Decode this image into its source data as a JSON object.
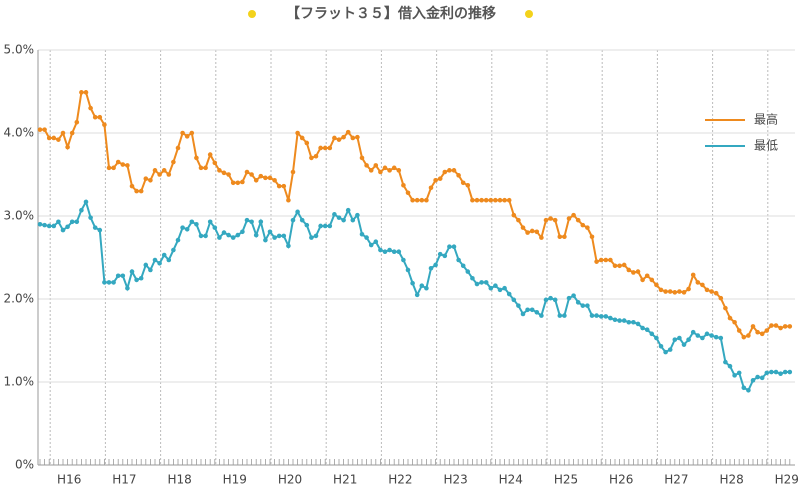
{
  "chart_data": {
    "type": "line",
    "title": "【フラット３５】借入金利の推移",
    "categories": [
      null,
      null,
      null,
      null,
      null,
      null,
      null,
      "H16",
      null,
      null,
      null,
      null,
      null,
      null,
      null,
      null,
      null,
      null,
      null,
      "H17",
      null,
      null,
      null,
      null,
      null,
      null,
      null,
      null,
      null,
      null,
      null,
      "H18",
      null,
      null,
      null,
      null,
      null,
      null,
      null,
      null,
      null,
      null,
      null,
      "H19",
      null,
      null,
      null,
      null,
      null,
      null,
      null,
      null,
      null,
      null,
      null,
      "H20",
      null,
      null,
      null,
      null,
      null,
      null,
      null,
      null,
      null,
      null,
      null,
      "H21",
      null,
      null,
      null,
      null,
      null,
      null,
      null,
      null,
      null,
      null,
      null,
      "H22",
      null,
      null,
      null,
      null,
      null,
      null,
      null,
      null,
      null,
      null,
      null,
      "H23",
      null,
      null,
      null,
      null,
      null,
      null,
      null,
      null,
      null,
      null,
      null,
      "H24",
      null,
      null,
      null,
      null,
      null,
      null,
      null,
      null,
      null,
      null,
      null,
      "H25",
      null,
      null,
      null,
      null,
      null,
      null,
      null,
      null,
      null,
      null,
      null,
      "H26",
      null,
      null,
      null,
      null,
      null,
      null,
      null,
      null,
      null,
      null,
      null,
      "H27",
      null,
      null,
      null,
      null,
      null,
      null,
      null,
      null,
      null,
      null,
      null,
      "H28",
      null,
      null,
      null,
      null,
      null,
      null,
      null,
      null,
      null,
      null,
      null,
      "H29"
    ],
    "series": [
      {
        "name": "最高",
        "color": "#ee8a1e",
        "values": [
          4.04,
          4.04,
          3.94,
          3.94,
          3.92,
          4.0,
          3.83,
          4.0,
          4.13,
          4.49,
          4.49,
          4.3,
          4.19,
          4.19,
          4.1,
          3.58,
          3.58,
          3.65,
          3.62,
          3.61,
          3.36,
          3.3,
          3.3,
          3.45,
          3.43,
          3.55,
          3.5,
          3.55,
          3.5,
          3.65,
          3.82,
          4.0,
          3.96,
          4.0,
          3.7,
          3.58,
          3.58,
          3.74,
          3.64,
          3.55,
          3.52,
          3.5,
          3.4,
          3.4,
          3.41,
          3.53,
          3.5,
          3.43,
          3.48,
          3.46,
          3.46,
          3.43,
          3.36,
          3.36,
          3.19,
          3.53,
          4.0,
          3.94,
          3.88,
          3.7,
          3.72,
          3.82,
          3.82,
          3.82,
          3.94,
          3.92,
          3.95,
          4.01,
          3.94,
          3.95,
          3.7,
          3.61,
          3.55,
          3.61,
          3.53,
          3.58,
          3.55,
          3.58,
          3.55,
          3.37,
          3.28,
          3.19,
          3.19,
          3.19,
          3.19,
          3.34,
          3.43,
          3.45,
          3.53,
          3.55,
          3.55,
          3.49,
          3.4,
          3.37,
          3.19,
          3.19,
          3.19,
          3.19,
          3.19,
          3.19,
          3.19,
          3.19,
          3.19,
          3.01,
          2.95,
          2.86,
          2.8,
          2.82,
          2.81,
          2.74,
          2.95,
          2.97,
          2.95,
          2.75,
          2.75,
          2.97,
          3.01,
          2.95,
          2.89,
          2.86,
          2.75,
          2.45,
          2.47,
          2.47,
          2.47,
          2.4,
          2.4,
          2.41,
          2.35,
          2.32,
          2.33,
          2.23,
          2.28,
          2.23,
          2.17,
          2.11,
          2.09,
          2.09,
          2.08,
          2.09,
          2.08,
          2.12,
          2.29,
          2.2,
          2.17,
          2.11,
          2.09,
          2.07,
          2.01,
          1.89,
          1.77,
          1.72,
          1.62,
          1.54,
          1.56,
          1.67,
          1.6,
          1.58,
          1.62,
          1.68,
          1.68,
          1.65,
          1.67,
          1.67
        ]
      },
      {
        "name": "最低",
        "color": "#34a8c0",
        "values": [
          2.9,
          2.89,
          2.88,
          2.88,
          2.93,
          2.83,
          2.87,
          2.93,
          2.93,
          3.07,
          3.17,
          2.98,
          2.86,
          2.83,
          2.2,
          2.2,
          2.2,
          2.28,
          2.28,
          2.13,
          2.33,
          2.23,
          2.25,
          2.41,
          2.35,
          2.47,
          2.43,
          2.53,
          2.47,
          2.59,
          2.71,
          2.86,
          2.84,
          2.93,
          2.9,
          2.76,
          2.76,
          2.93,
          2.86,
          2.74,
          2.8,
          2.77,
          2.74,
          2.77,
          2.81,
          2.95,
          2.93,
          2.77,
          2.93,
          2.71,
          2.81,
          2.74,
          2.76,
          2.76,
          2.64,
          2.95,
          3.05,
          2.95,
          2.89,
          2.74,
          2.76,
          2.88,
          2.88,
          2.88,
          3.02,
          2.98,
          2.95,
          3.07,
          2.95,
          3.01,
          2.78,
          2.74,
          2.65,
          2.69,
          2.59,
          2.57,
          2.59,
          2.57,
          2.57,
          2.47,
          2.35,
          2.19,
          2.05,
          2.16,
          2.13,
          2.37,
          2.41,
          2.54,
          2.52,
          2.63,
          2.63,
          2.47,
          2.4,
          2.33,
          2.25,
          2.18,
          2.2,
          2.2,
          2.13,
          2.16,
          2.11,
          2.13,
          2.06,
          1.99,
          1.92,
          1.82,
          1.87,
          1.87,
          1.84,
          1.8,
          1.99,
          2.01,
          1.99,
          1.8,
          1.8,
          2.01,
          2.04,
          1.96,
          1.92,
          1.92,
          1.8,
          1.8,
          1.79,
          1.79,
          1.77,
          1.75,
          1.74,
          1.74,
          1.72,
          1.72,
          1.7,
          1.65,
          1.63,
          1.58,
          1.53,
          1.43,
          1.36,
          1.39,
          1.51,
          1.53,
          1.45,
          1.51,
          1.6,
          1.56,
          1.53,
          1.58,
          1.56,
          1.54,
          1.53,
          1.24,
          1.19,
          1.08,
          1.11,
          0.93,
          0.9,
          1.02,
          1.06,
          1.05,
          1.11,
          1.12,
          1.12,
          1.1,
          1.12,
          1.12
        ]
      }
    ],
    "ylim": [
      0,
      5
    ],
    "yticks": [
      {
        "value": 0,
        "label": "0%"
      },
      {
        "value": 1,
        "label": "1.0%"
      },
      {
        "value": 2,
        "label": "2.0%"
      },
      {
        "value": 3,
        "label": "3.0%"
      },
      {
        "value": 4,
        "label": "4.0%"
      },
      {
        "value": 5,
        "label": "5.0%"
      }
    ],
    "grid": true,
    "legend": "right"
  }
}
